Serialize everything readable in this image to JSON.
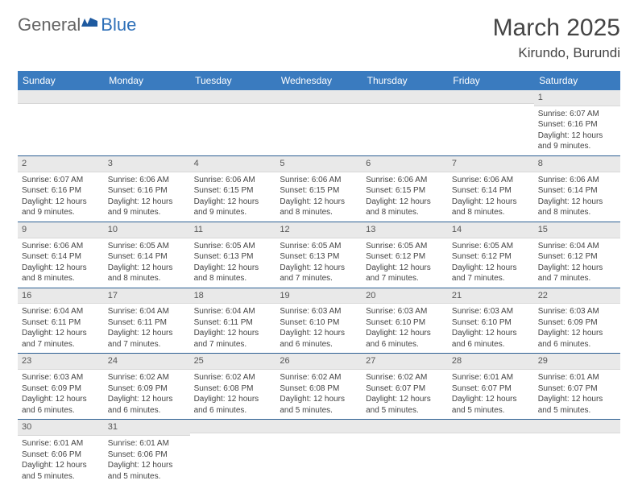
{
  "logo": {
    "text1": "General",
    "text2": "Blue"
  },
  "title": "March 2025",
  "location": "Kirundo, Burundi",
  "colors": {
    "header_bg": "#3a7bbf",
    "header_text": "#ffffff",
    "daynum_bg": "#e9e9e9",
    "row_border": "#2c5f93",
    "text": "#444444"
  },
  "day_names": [
    "Sunday",
    "Monday",
    "Tuesday",
    "Wednesday",
    "Thursday",
    "Friday",
    "Saturday"
  ],
  "weeks": [
    [
      {
        "n": "",
        "sr": "",
        "ss": "",
        "dl": ""
      },
      {
        "n": "",
        "sr": "",
        "ss": "",
        "dl": ""
      },
      {
        "n": "",
        "sr": "",
        "ss": "",
        "dl": ""
      },
      {
        "n": "",
        "sr": "",
        "ss": "",
        "dl": ""
      },
      {
        "n": "",
        "sr": "",
        "ss": "",
        "dl": ""
      },
      {
        "n": "",
        "sr": "",
        "ss": "",
        "dl": ""
      },
      {
        "n": "1",
        "sr": "Sunrise: 6:07 AM",
        "ss": "Sunset: 6:16 PM",
        "dl": "Daylight: 12 hours and 9 minutes."
      }
    ],
    [
      {
        "n": "2",
        "sr": "Sunrise: 6:07 AM",
        "ss": "Sunset: 6:16 PM",
        "dl": "Daylight: 12 hours and 9 minutes."
      },
      {
        "n": "3",
        "sr": "Sunrise: 6:06 AM",
        "ss": "Sunset: 6:16 PM",
        "dl": "Daylight: 12 hours and 9 minutes."
      },
      {
        "n": "4",
        "sr": "Sunrise: 6:06 AM",
        "ss": "Sunset: 6:15 PM",
        "dl": "Daylight: 12 hours and 9 minutes."
      },
      {
        "n": "5",
        "sr": "Sunrise: 6:06 AM",
        "ss": "Sunset: 6:15 PM",
        "dl": "Daylight: 12 hours and 8 minutes."
      },
      {
        "n": "6",
        "sr": "Sunrise: 6:06 AM",
        "ss": "Sunset: 6:15 PM",
        "dl": "Daylight: 12 hours and 8 minutes."
      },
      {
        "n": "7",
        "sr": "Sunrise: 6:06 AM",
        "ss": "Sunset: 6:14 PM",
        "dl": "Daylight: 12 hours and 8 minutes."
      },
      {
        "n": "8",
        "sr": "Sunrise: 6:06 AM",
        "ss": "Sunset: 6:14 PM",
        "dl": "Daylight: 12 hours and 8 minutes."
      }
    ],
    [
      {
        "n": "9",
        "sr": "Sunrise: 6:06 AM",
        "ss": "Sunset: 6:14 PM",
        "dl": "Daylight: 12 hours and 8 minutes."
      },
      {
        "n": "10",
        "sr": "Sunrise: 6:05 AM",
        "ss": "Sunset: 6:14 PM",
        "dl": "Daylight: 12 hours and 8 minutes."
      },
      {
        "n": "11",
        "sr": "Sunrise: 6:05 AM",
        "ss": "Sunset: 6:13 PM",
        "dl": "Daylight: 12 hours and 8 minutes."
      },
      {
        "n": "12",
        "sr": "Sunrise: 6:05 AM",
        "ss": "Sunset: 6:13 PM",
        "dl": "Daylight: 12 hours and 7 minutes."
      },
      {
        "n": "13",
        "sr": "Sunrise: 6:05 AM",
        "ss": "Sunset: 6:12 PM",
        "dl": "Daylight: 12 hours and 7 minutes."
      },
      {
        "n": "14",
        "sr": "Sunrise: 6:05 AM",
        "ss": "Sunset: 6:12 PM",
        "dl": "Daylight: 12 hours and 7 minutes."
      },
      {
        "n": "15",
        "sr": "Sunrise: 6:04 AM",
        "ss": "Sunset: 6:12 PM",
        "dl": "Daylight: 12 hours and 7 minutes."
      }
    ],
    [
      {
        "n": "16",
        "sr": "Sunrise: 6:04 AM",
        "ss": "Sunset: 6:11 PM",
        "dl": "Daylight: 12 hours and 7 minutes."
      },
      {
        "n": "17",
        "sr": "Sunrise: 6:04 AM",
        "ss": "Sunset: 6:11 PM",
        "dl": "Daylight: 12 hours and 7 minutes."
      },
      {
        "n": "18",
        "sr": "Sunrise: 6:04 AM",
        "ss": "Sunset: 6:11 PM",
        "dl": "Daylight: 12 hours and 7 minutes."
      },
      {
        "n": "19",
        "sr": "Sunrise: 6:03 AM",
        "ss": "Sunset: 6:10 PM",
        "dl": "Daylight: 12 hours and 6 minutes."
      },
      {
        "n": "20",
        "sr": "Sunrise: 6:03 AM",
        "ss": "Sunset: 6:10 PM",
        "dl": "Daylight: 12 hours and 6 minutes."
      },
      {
        "n": "21",
        "sr": "Sunrise: 6:03 AM",
        "ss": "Sunset: 6:10 PM",
        "dl": "Daylight: 12 hours and 6 minutes."
      },
      {
        "n": "22",
        "sr": "Sunrise: 6:03 AM",
        "ss": "Sunset: 6:09 PM",
        "dl": "Daylight: 12 hours and 6 minutes."
      }
    ],
    [
      {
        "n": "23",
        "sr": "Sunrise: 6:03 AM",
        "ss": "Sunset: 6:09 PM",
        "dl": "Daylight: 12 hours and 6 minutes."
      },
      {
        "n": "24",
        "sr": "Sunrise: 6:02 AM",
        "ss": "Sunset: 6:09 PM",
        "dl": "Daylight: 12 hours and 6 minutes."
      },
      {
        "n": "25",
        "sr": "Sunrise: 6:02 AM",
        "ss": "Sunset: 6:08 PM",
        "dl": "Daylight: 12 hours and 6 minutes."
      },
      {
        "n": "26",
        "sr": "Sunrise: 6:02 AM",
        "ss": "Sunset: 6:08 PM",
        "dl": "Daylight: 12 hours and 5 minutes."
      },
      {
        "n": "27",
        "sr": "Sunrise: 6:02 AM",
        "ss": "Sunset: 6:07 PM",
        "dl": "Daylight: 12 hours and 5 minutes."
      },
      {
        "n": "28",
        "sr": "Sunrise: 6:01 AM",
        "ss": "Sunset: 6:07 PM",
        "dl": "Daylight: 12 hours and 5 minutes."
      },
      {
        "n": "29",
        "sr": "Sunrise: 6:01 AM",
        "ss": "Sunset: 6:07 PM",
        "dl": "Daylight: 12 hours and 5 minutes."
      }
    ],
    [
      {
        "n": "30",
        "sr": "Sunrise: 6:01 AM",
        "ss": "Sunset: 6:06 PM",
        "dl": "Daylight: 12 hours and 5 minutes."
      },
      {
        "n": "31",
        "sr": "Sunrise: 6:01 AM",
        "ss": "Sunset: 6:06 PM",
        "dl": "Daylight: 12 hours and 5 minutes."
      },
      {
        "n": "",
        "sr": "",
        "ss": "",
        "dl": ""
      },
      {
        "n": "",
        "sr": "",
        "ss": "",
        "dl": ""
      },
      {
        "n": "",
        "sr": "",
        "ss": "",
        "dl": ""
      },
      {
        "n": "",
        "sr": "",
        "ss": "",
        "dl": ""
      },
      {
        "n": "",
        "sr": "",
        "ss": "",
        "dl": ""
      }
    ]
  ]
}
